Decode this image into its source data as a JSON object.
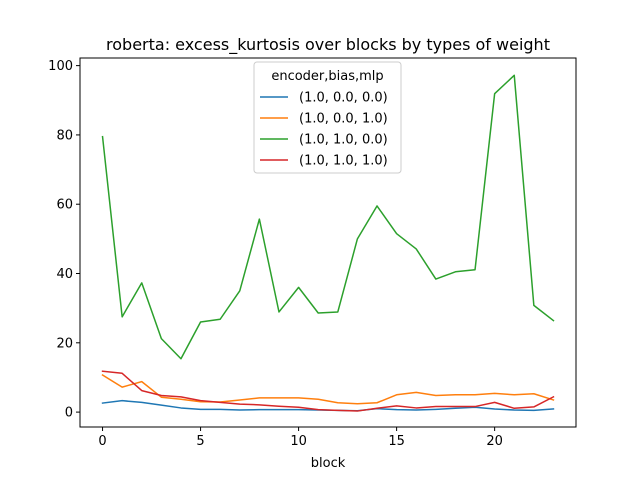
{
  "chart_data": {
    "type": "line",
    "title": "roberta: excess_kurtosis over blocks by types of weight",
    "xlabel": "block",
    "ylabel": "",
    "xlim": [
      -1.15,
      24.15
    ],
    "ylim": [
      -4.3,
      102.2
    ],
    "xticks": [
      0,
      5,
      10,
      15,
      20
    ],
    "yticks": [
      0,
      20,
      40,
      60,
      80,
      100
    ],
    "legend_title": "encoder,bias,mlp",
    "legend_position": "top-center",
    "grid": false,
    "x": [
      0,
      1,
      2,
      3,
      4,
      5,
      6,
      7,
      8,
      9,
      10,
      11,
      12,
      13,
      14,
      15,
      16,
      17,
      18,
      19,
      20,
      21,
      22,
      23
    ],
    "series": [
      {
        "name": "(1.0, 0.0, 0.0)",
        "color": "#1f77b4",
        "values": [
          2.6,
          3.3,
          2.8,
          2.0,
          1.2,
          0.8,
          0.8,
          0.6,
          0.7,
          0.7,
          0.7,
          0.6,
          0.5,
          0.4,
          1.0,
          0.7,
          0.6,
          0.8,
          1.1,
          1.4,
          0.9,
          0.6,
          0.5,
          0.9
        ]
      },
      {
        "name": "(1.0, 0.0, 1.0)",
        "color": "#ff7f0e",
        "values": [
          10.7,
          7.2,
          8.8,
          4.3,
          3.7,
          3.0,
          2.9,
          3.5,
          4.1,
          4.1,
          4.1,
          3.7,
          2.7,
          2.4,
          2.7,
          5.0,
          5.7,
          4.8,
          5.0,
          5.0,
          5.4,
          5.0,
          5.3,
          3.5
        ]
      },
      {
        "name": "(1.0, 1.0, 0.0)",
        "color": "#2ca02c",
        "values": [
          79.5,
          27.5,
          37.3,
          21.2,
          15.4,
          26.0,
          26.8,
          35.0,
          55.7,
          28.9,
          36.0,
          28.6,
          28.9,
          50.0,
          59.5,
          51.5,
          47.1,
          38.4,
          40.5,
          41.1,
          91.9,
          97.2,
          30.8,
          26.4
        ]
      },
      {
        "name": "(1.0, 1.0, 1.0)",
        "color": "#d62728",
        "values": [
          11.8,
          11.2,
          6.2,
          4.8,
          4.4,
          3.3,
          2.8,
          2.3,
          2.1,
          1.7,
          1.4,
          0.7,
          0.5,
          0.3,
          1.1,
          1.8,
          1.2,
          1.6,
          1.6,
          1.6,
          2.8,
          1.1,
          1.5,
          4.4
        ]
      }
    ]
  }
}
